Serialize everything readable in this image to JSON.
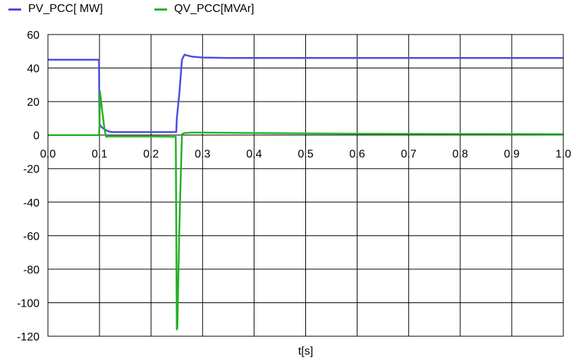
{
  "chart_data": {
    "type": "line",
    "title": "",
    "xlabel": "t[s]",
    "ylabel": "",
    "xlim": [
      0,
      1.0
    ],
    "ylim": [
      -120,
      60
    ],
    "x_ticks": [
      0,
      0.1,
      0.2,
      0.3,
      0.4,
      0.5,
      0.6,
      0.7,
      0.8,
      0.9,
      1.0
    ],
    "x_tick_labels": [
      "0.0",
      "0.1",
      "0.2",
      "0.3",
      "0.4",
      "0.5",
      "0.6",
      "0.7",
      "0.8",
      "0.9",
      "1.0"
    ],
    "y_ticks": [
      60,
      40,
      20,
      0,
      -20,
      -40,
      -60,
      -80,
      -100,
      -120
    ],
    "y_tick_labels": [
      "60",
      "40",
      "20",
      "0",
      "-20",
      "-40",
      "-60",
      "-80",
      "-100",
      "-120"
    ],
    "grid": true,
    "legend_position": "top-left",
    "series": [
      {
        "name": "PV_PCC[ MW]",
        "color": "#4a4ae0",
        "x": [
          0.0,
          0.099,
          0.1,
          0.101,
          0.105,
          0.11,
          0.115,
          0.12,
          0.125,
          0.15,
          0.2,
          0.249,
          0.25,
          0.255,
          0.26,
          0.265,
          0.27,
          0.28,
          0.3,
          0.35,
          0.5,
          1.0
        ],
        "y": [
          45.0,
          45.0,
          7.0,
          6.0,
          4.5,
          3.5,
          2.5,
          2.0,
          1.8,
          1.8,
          1.8,
          1.8,
          10.0,
          25.0,
          45.0,
          48.0,
          47.5,
          46.8,
          46.3,
          46.0,
          46.0,
          46.0
        ]
      },
      {
        "name": "QV_PCC[MVAr]",
        "color": "#22b022",
        "x": [
          0.0,
          0.099,
          0.1,
          0.101,
          0.105,
          0.11,
          0.113,
          0.12,
          0.15,
          0.2,
          0.248,
          0.25,
          0.251,
          0.255,
          0.26,
          0.265,
          0.28,
          0.3,
          0.5,
          0.6,
          1.0
        ],
        "y": [
          0.0,
          0.0,
          5.0,
          26.0,
          15.0,
          3.0,
          -1.0,
          -0.8,
          -0.8,
          -0.8,
          -1.0,
          -116.0,
          -115.0,
          -55.0,
          0.5,
          1.2,
          1.5,
          1.5,
          1.0,
          0.8,
          0.5
        ]
      }
    ]
  }
}
